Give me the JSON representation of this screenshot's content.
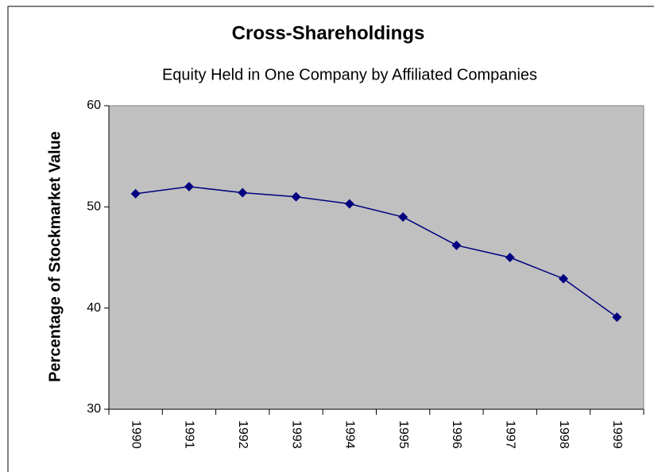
{
  "chart_data": {
    "type": "line",
    "title": "Cross-Shareholdings",
    "subtitle": "Equity Held in One Company by Affiliated Companies",
    "y_label": "Percentage of Stockmarket Value",
    "categories": [
      "1990",
      "1991",
      "1992",
      "1993",
      "1994",
      "1995",
      "1996",
      "1997",
      "1998",
      "1999"
    ],
    "values": [
      51.3,
      52.0,
      51.4,
      51.0,
      50.3,
      49.0,
      46.2,
      45.0,
      42.9,
      39.1
    ],
    "color": "#000080",
    "ylim": [
      30,
      60
    ],
    "yticks": [
      30,
      40,
      50,
      60
    ],
    "grid": false
  }
}
